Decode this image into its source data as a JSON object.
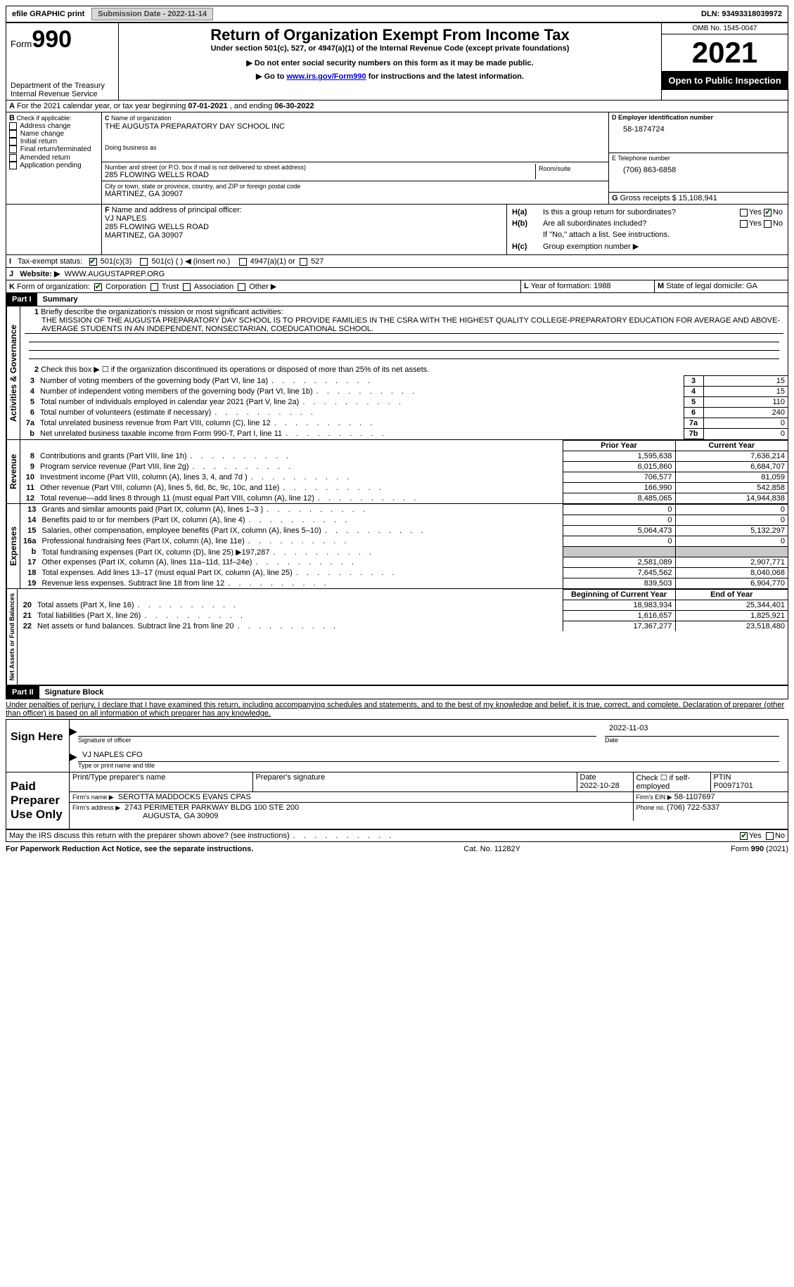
{
  "top": {
    "efile": "efile GRAPHIC print",
    "submission_label": "Submission Date - 2022-11-14",
    "dln_label": "DLN: 93493318039972"
  },
  "header": {
    "form_word": "Form",
    "form_num": "990",
    "dept": "Department of the Treasury",
    "irs": "Internal Revenue Service",
    "title": "Return of Organization Exempt From Income Tax",
    "sub1": "Under section 501(c), 527, or 4947(a)(1) of the Internal Revenue Code (except private foundations)",
    "sub2": "▶ Do not enter social security numbers on this form as it may be made public.",
    "sub3a": "▶ Go to ",
    "sub3_link": "www.irs.gov/Form990",
    "sub3b": " for instructions and the latest information.",
    "omb": "OMB No. 1545-0047",
    "year": "2021",
    "open": "Open to Public Inspection"
  },
  "A": {
    "text_a": "A",
    "text": " For the 2021 calendar year, or tax year beginning ",
    "begin": "07-01-2021",
    "mid": " , and ending ",
    "end": "06-30-2022"
  },
  "B": {
    "label": "B",
    "check_label": " Check if applicable:",
    "opts": [
      "Address change",
      "Name change",
      "Initial return",
      "Final return/terminated",
      "Amended return",
      "Application pending"
    ]
  },
  "C": {
    "label": "C ",
    "name_label": "Name of organization",
    "name": "THE AUGUSTA PREPARATORY DAY SCHOOL INC",
    "dba_label": "Doing business as",
    "street_label": "Number and street (or P.O. box if mail is not delivered to street address)",
    "room_label": "Room/suite",
    "street": "285 FLOWING WELLS ROAD",
    "city_label": "City or town, state or province, country, and ZIP or foreign postal code",
    "city": "MARTINEZ, GA  30907"
  },
  "D": {
    "label": "D Employer identification number",
    "value": "58-1874724"
  },
  "E": {
    "label": "E Telephone number",
    "value": "(706) 863-6858"
  },
  "G": {
    "label": "G",
    "text": " Gross receipts $ ",
    "value": "15,108,941"
  },
  "F": {
    "label": "F",
    "text": " Name and address of principal officer:",
    "name": "VJ NAPLES",
    "addr1": "285 FLOWING WELLS ROAD",
    "addr2": "MARTINEZ, GA  30907"
  },
  "H": {
    "a_label": "H(a)",
    "a_text": "Is this a group return for subordinates?",
    "b_label": "H(b)",
    "b_text": "Are all subordinates included?",
    "note": "If \"No,\" attach a list. See instructions.",
    "c_label": "H(c)",
    "c_text": "Group exemption number ▶",
    "yes": "Yes",
    "no": "No"
  },
  "I": {
    "label": "I",
    "text": "Tax-exempt status:",
    "opt1": "501(c)(3)",
    "opt2": "501(c) (  ) ◀ (insert no.)",
    "opt3": "4947(a)(1) or",
    "opt4": "527"
  },
  "J": {
    "label": "J",
    "text": "Website: ▶",
    "value": "WWW.AUGUSTAPREP.ORG"
  },
  "K": {
    "label": "K",
    "text": " Form of organization:",
    "opts": [
      "Corporation",
      "Trust",
      "Association",
      "Other ▶"
    ]
  },
  "L": {
    "label": "L",
    "text": " Year of formation: ",
    "value": "1988"
  },
  "M": {
    "label": "M",
    "text": " State of legal domicile: ",
    "value": "GA"
  },
  "part1": {
    "hdr": "Part I",
    "title": "Summary"
  },
  "summary": {
    "mission_label": "1",
    "mission_text": "Briefly describe the organization's mission or most significant activities:",
    "mission": "THE MISSION OF THE AUGUSTA PREPARATORY DAY SCHOOL IS TO PROVIDE FAMILIES IN THE CSRA WITH THE HIGHEST QUALITY COLLEGE-PREPARATORY EDUCATION FOR AVERAGE AND ABOVE-AVERAGE STUDENTS IN AN INDEPENDENT, NONSECTARIAN, COEDUCATIONAL SCHOOL.",
    "line2_no": "2",
    "line2": "Check this box ▶ ☐ if the organization discontinued its operations or disposed of more than 25% of its net assets.",
    "rows_gov": [
      {
        "no": "3",
        "text": "Number of voting members of the governing body (Part VI, line 1a)",
        "box": "3",
        "val": "15"
      },
      {
        "no": "4",
        "text": "Number of independent voting members of the governing body (Part VI, line 1b)",
        "box": "4",
        "val": "15"
      },
      {
        "no": "5",
        "text": "Total number of individuals employed in calendar year 2021 (Part V, line 2a)",
        "box": "5",
        "val": "110"
      },
      {
        "no": "6",
        "text": "Total number of volunteers (estimate if necessary)",
        "box": "6",
        "val": "240"
      },
      {
        "no": "7a",
        "text": "Total unrelated business revenue from Part VIII, column (C), line 12",
        "box": "7a",
        "val": "0"
      },
      {
        "no": "b",
        "text": "Net unrelated business taxable income from Form 990-T, Part I, line 11",
        "box": "7b",
        "val": "0"
      }
    ],
    "hdr_prior": "Prior Year",
    "hdr_current": "Current Year",
    "rows_rev": [
      {
        "no": "8",
        "text": "Contributions and grants (Part VIII, line 1h)",
        "prior": "1,595,638",
        "cur": "7,636,214"
      },
      {
        "no": "9",
        "text": "Program service revenue (Part VIII, line 2g)",
        "prior": "6,015,860",
        "cur": "6,684,707"
      },
      {
        "no": "10",
        "text": "Investment income (Part VIII, column (A), lines 3, 4, and 7d )",
        "prior": "706,577",
        "cur": "81,059"
      },
      {
        "no": "11",
        "text": "Other revenue (Part VIII, column (A), lines 5, 6d, 8c, 9c, 10c, and 11e)",
        "prior": "166,990",
        "cur": "542,858"
      },
      {
        "no": "12",
        "text": "Total revenue—add lines 8 through 11 (must equal Part VIII, column (A), line 12)",
        "prior": "8,485,065",
        "cur": "14,944,838"
      }
    ],
    "rows_exp": [
      {
        "no": "13",
        "text": "Grants and similar amounts paid (Part IX, column (A), lines 1–3 )",
        "prior": "0",
        "cur": "0"
      },
      {
        "no": "14",
        "text": "Benefits paid to or for members (Part IX, column (A), line 4)",
        "prior": "0",
        "cur": "0"
      },
      {
        "no": "15",
        "text": "Salaries, other compensation, employee benefits (Part IX, column (A), lines 5–10)",
        "prior": "5,064,473",
        "cur": "5,132,297"
      },
      {
        "no": "16a",
        "text": "Professional fundraising fees (Part IX, column (A), line 11e)",
        "prior": "0",
        "cur": "0"
      },
      {
        "no": "b",
        "text": "Total fundraising expenses (Part IX, column (D), line 25) ▶197,287",
        "prior": "GREY",
        "cur": "GREY"
      },
      {
        "no": "17",
        "text": "Other expenses (Part IX, column (A), lines 11a–11d, 11f–24e)",
        "prior": "2,581,089",
        "cur": "2,907,771"
      },
      {
        "no": "18",
        "text": "Total expenses. Add lines 13–17 (must equal Part IX, column (A), line 25)",
        "prior": "7,645,562",
        "cur": "8,040,068"
      },
      {
        "no": "19",
        "text": "Revenue less expenses. Subtract line 18 from line 12",
        "prior": "839,503",
        "cur": "6,904,770"
      }
    ],
    "hdr_begin": "Beginning of Current Year",
    "hdr_end": "End of Year",
    "rows_net": [
      {
        "no": "20",
        "text": "Total assets (Part X, line 16)",
        "prior": "18,983,934",
        "cur": "25,344,401"
      },
      {
        "no": "21",
        "text": "Total liabilities (Part X, line 26)",
        "prior": "1,616,657",
        "cur": "1,825,921"
      },
      {
        "no": "22",
        "text": "Net assets or fund balances. Subtract line 21 from line 20",
        "prior": "17,367,277",
        "cur": "23,518,480"
      }
    ],
    "side_gov": "Activities & Governance",
    "side_rev": "Revenue",
    "side_exp": "Expenses",
    "side_net": "Net Assets or Fund Balances"
  },
  "part2": {
    "hdr": "Part II",
    "title": "Signature Block"
  },
  "sig": {
    "penalties": "Under penalties of perjury, I declare that I have examined this return, including accompanying schedules and statements, and to the best of my knowledge and belief, it is true, correct, and complete. Declaration of preparer (other than officer) is based on all information of which preparer has any knowledge.",
    "sign_here": "Sign Here",
    "sig_officer": "Signature of officer",
    "sig_date": "2022-11-03",
    "date_lbl": "Date",
    "name_title": "VJ NAPLES CFO",
    "type_name": "Type or print name and title",
    "paid": "Paid Preparer Use Only",
    "prep_name_lbl": "Print/Type preparer's name",
    "prep_sig_lbl": "Preparer's signature",
    "prep_date_lbl": "Date",
    "prep_date": "2022-10-28",
    "check_self": "Check ☐ if self-employed",
    "ptin_lbl": "PTIN",
    "ptin": "P00971701",
    "firm_name_lbl": "Firm's name    ▶",
    "firm_name": "SEROTTA MADDOCKS EVANS CPAS",
    "firm_ein_lbl": "Firm's EIN ▶",
    "firm_ein": "58-1107697",
    "firm_addr_lbl": "Firm's address ▶",
    "firm_addr1": "2743 PERIMETER PARKWAY BLDG 100 STE 200",
    "firm_addr2": "AUGUSTA, GA  30909",
    "phone_lbl": "Phone no. ",
    "phone": "(706) 722-5337",
    "discuss": "May the IRS discuss this return with the preparer shown above? (see instructions)"
  },
  "footer": {
    "left": "For Paperwork Reduction Act Notice, see the separate instructions.",
    "mid": "Cat. No. 11282Y",
    "right": "Form 990 (2021)"
  }
}
